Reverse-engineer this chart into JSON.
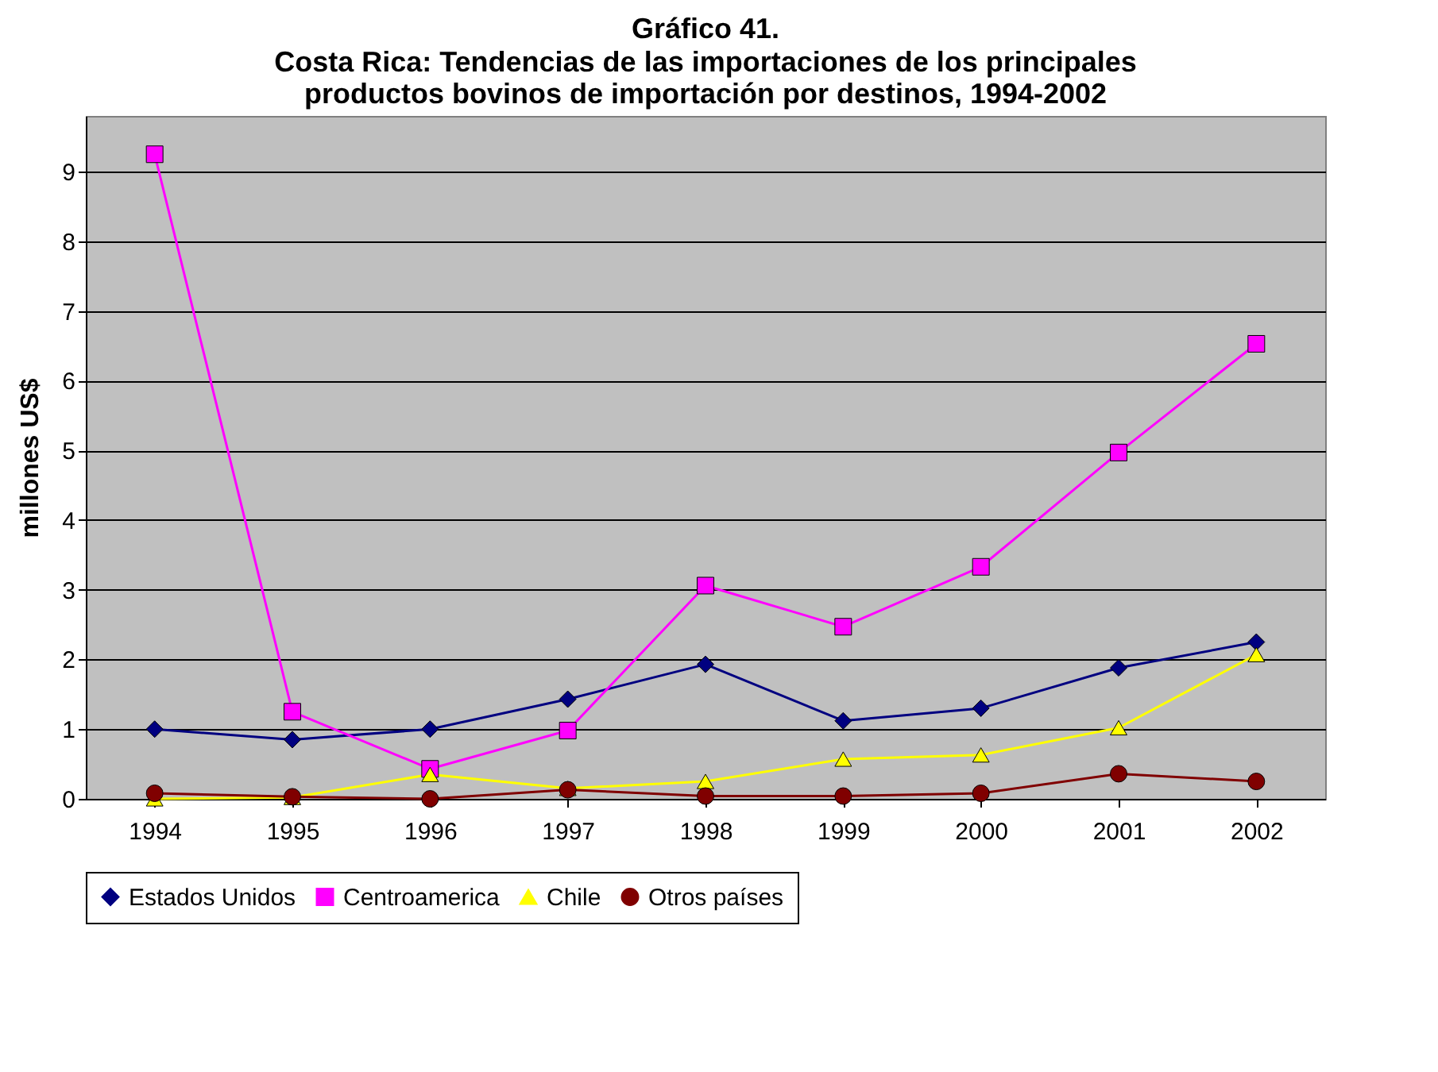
{
  "chart_data": {
    "type": "line",
    "title": "Gráfico 41.",
    "subtitle": "Costa Rica: Tendencias de las importaciones de los principales productos bovinos de importación por destinos, 1994-2002",
    "ylabel": "millones US$",
    "categories": [
      "1994",
      "1995",
      "1996",
      "1997",
      "1998",
      "1999",
      "2000",
      "2001",
      "2002"
    ],
    "series": [
      {
        "name": "Estados Unidos",
        "color": "#000080",
        "marker": "diamond",
        "values": [
          1.0,
          0.85,
          1.0,
          1.43,
          1.93,
          1.12,
          1.3,
          1.88,
          2.25
        ]
      },
      {
        "name": "Centroamerica",
        "color": "#ff00ff",
        "marker": "square",
        "values": [
          9.25,
          1.25,
          0.43,
          0.98,
          3.06,
          2.47,
          3.33,
          4.97,
          6.53
        ]
      },
      {
        "name": "Chile",
        "color": "#ffff00",
        "marker": "triangle",
        "values": [
          0,
          0.02,
          0.35,
          0.15,
          0.25,
          0.57,
          0.63,
          1.02,
          2.07
        ]
      },
      {
        "name": "Otros países",
        "color": "#800000",
        "marker": "circle",
        "values": [
          0.08,
          0.03,
          0,
          0.13,
          0.04,
          0.04,
          0.08,
          0.36,
          0.25
        ]
      }
    ],
    "ylim": [
      0,
      9.8
    ],
    "yticks": [
      0,
      1,
      2,
      3,
      4,
      5,
      6,
      7,
      8,
      9
    ],
    "grid": "y",
    "legend": "bottom"
  }
}
